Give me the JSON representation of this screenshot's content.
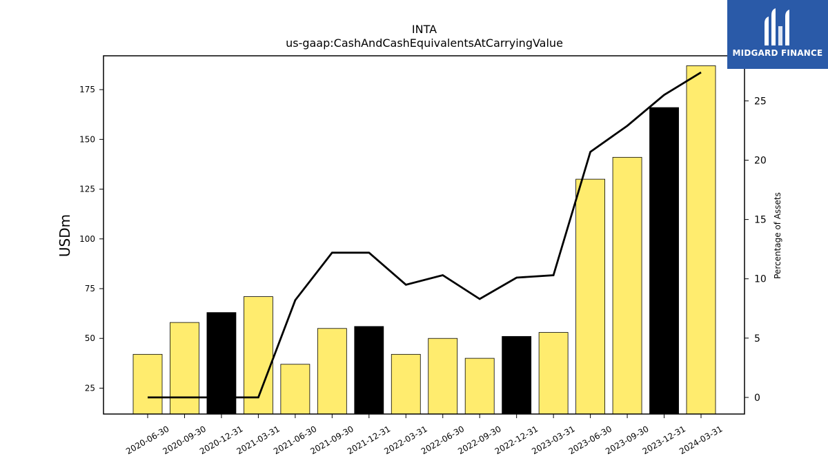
{
  "chart_data": {
    "type": "bar",
    "title": "INTA",
    "subtitle": "us-gaap:CashAndCashEquivalentsAtCarryingValue",
    "ylabel": "USDm",
    "y2label": "Percentage of Assets",
    "categories": [
      "2020-06-30",
      "2020-09-30",
      "2020-12-31",
      "2021-03-31",
      "2021-06-30",
      "2021-09-30",
      "2021-12-31",
      "2022-03-31",
      "2022-06-30",
      "2022-09-30",
      "2022-12-31",
      "2023-03-31",
      "2023-06-30",
      "2023-09-30",
      "2023-12-31",
      "2024-03-31"
    ],
    "series": [
      {
        "values": [
          42,
          58,
          63,
          71,
          37,
          55,
          56,
          42,
          50,
          40,
          51,
          53,
          130,
          141,
          166,
          187
        ],
        "bar_colors": [
          "#ffec6e",
          "#ffec6e",
          "#000000",
          "#ffec6e",
          "#ffec6e",
          "#ffec6e",
          "#000000",
          "#ffec6e",
          "#ffec6e",
          "#ffec6e",
          "#000000",
          "#ffec6e",
          "#ffec6e",
          "#ffec6e",
          "#000000",
          "#ffec6e"
        ],
        "axis": "left"
      },
      {
        "type": "line",
        "values": [
          0,
          0,
          0,
          0,
          8.2,
          12.2,
          12.2,
          9.5,
          10.3,
          8.3,
          10.1,
          10.3,
          20.7,
          22.9,
          25.5,
          27.4
        ],
        "color": "#000000",
        "axis": "right"
      }
    ],
    "ylim": [
      12,
      192
    ],
    "y2lim": [
      -1.4,
      28.8
    ],
    "yticks": [
      25,
      50,
      75,
      100,
      125,
      150,
      175
    ],
    "y2ticks": [
      0,
      5,
      10,
      15,
      20,
      25
    ],
    "grid": false,
    "legend": "none"
  },
  "logo": {
    "text": "MIDGARD FINANCE",
    "background": "#2a5aa8"
  }
}
